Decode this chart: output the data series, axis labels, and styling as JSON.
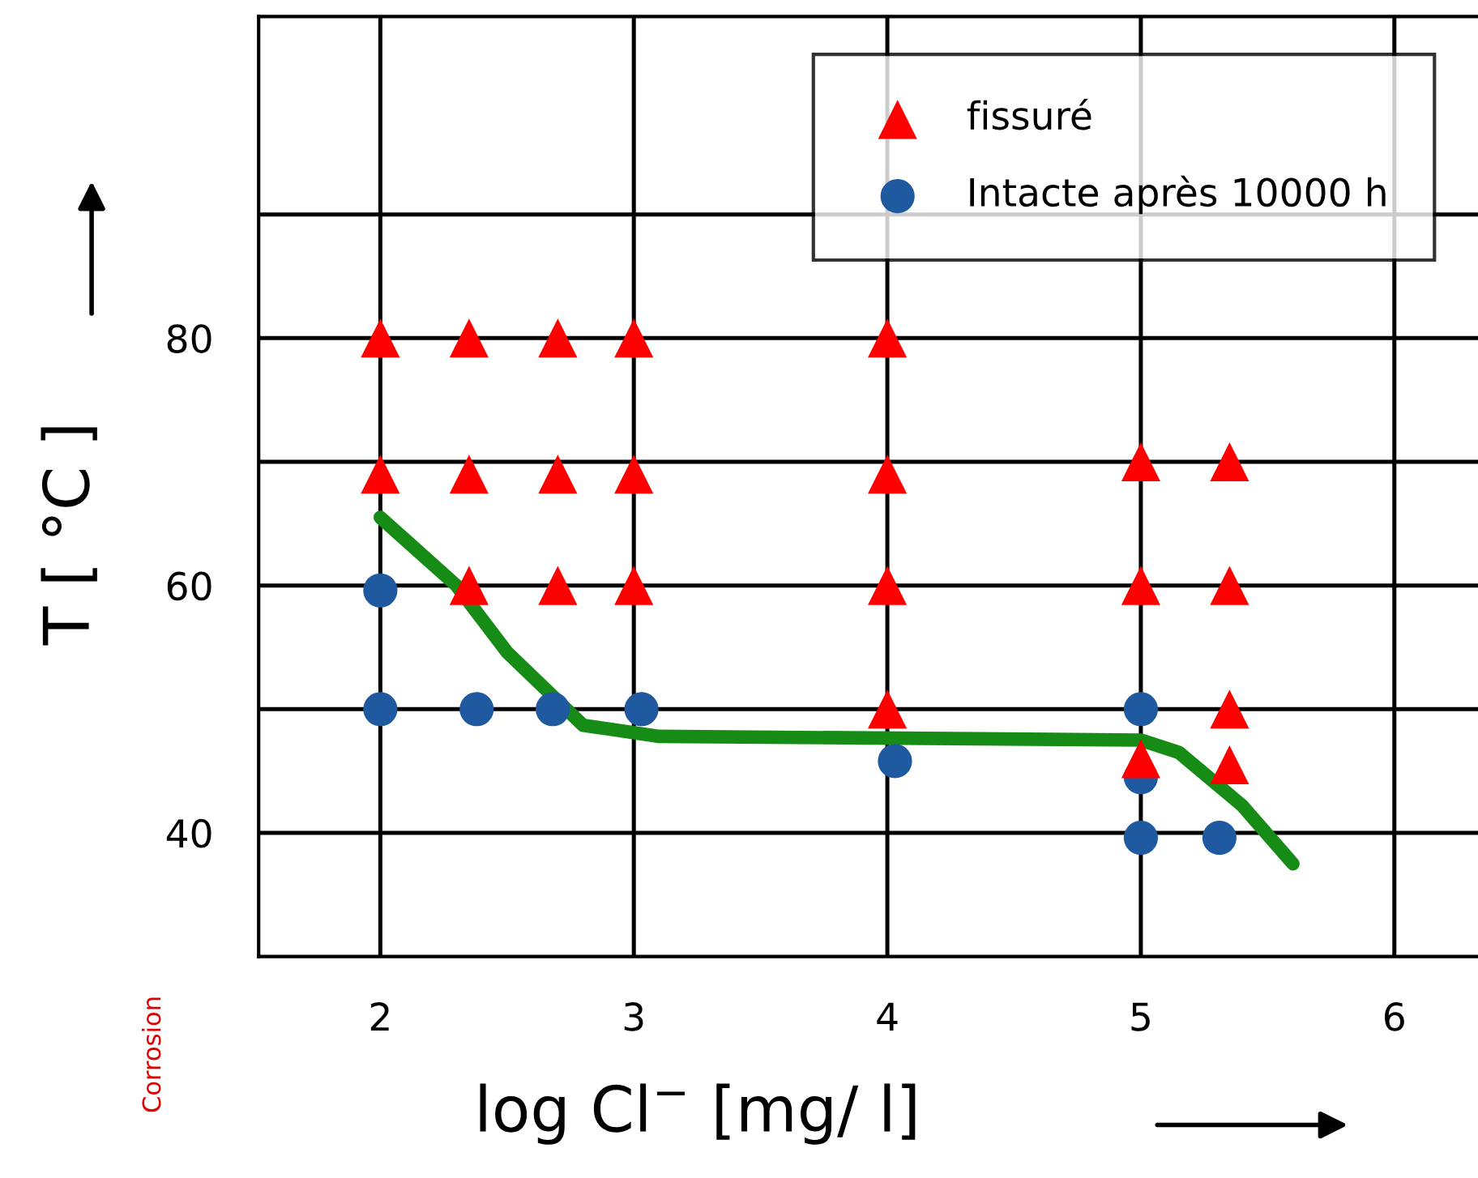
{
  "chart_data": {
    "type": "scatter",
    "xlabel": "log Cl$^{−}$ [mg/ l]",
    "ylabel": "T [ °C ]",
    "xlim": [
      1.52,
      6.33
    ],
    "ylim": [
      30,
      106
    ],
    "xticks": [
      2,
      3,
      4,
      5,
      6
    ],
    "yticks": [
      40,
      {
        "value": 50,
        "label": null
      },
      60,
      {
        "value": 70,
        "label": null
      },
      80,
      {
        "value": 90,
        "label": null
      }
    ],
    "grid": true,
    "legend": "top right",
    "annotations": [
      "Corrosion"
    ],
    "series": [
      {
        "name": "fissuré",
        "color": "#ff0000",
        "marker": "triangle",
        "x": [
          2,
          2.35,
          2.7,
          3,
          2,
          2.35,
          2.7,
          3,
          2.35,
          2.7,
          3,
          4,
          4,
          4,
          4,
          5,
          5,
          5,
          5.35,
          5.35,
          5.35,
          5.35
        ],
        "values": [
          80,
          80,
          80,
          80,
          69,
          69,
          69,
          69,
          60,
          60,
          60,
          80,
          69,
          60,
          50,
          70,
          60,
          46,
          70,
          60,
          50,
          45.5
        ]
      },
      {
        "name": "Intacte après 10000 h",
        "color": "#1f5aa0",
        "marker": "circle",
        "x": [
          2,
          2,
          2.38,
          2.68,
          3.03,
          4.03,
          5,
          5,
          5,
          5.31
        ],
        "values": [
          59.6,
          50,
          50,
          50,
          50,
          45.8,
          50,
          44.5,
          39.6,
          39.6
        ]
      },
      {
        "type": "line",
        "color": "#168c16",
        "marker": "none",
        "x": [
          2.0,
          2.3,
          2.5,
          2.8,
          3.1,
          5.0,
          5.15,
          5.4,
          5.6
        ],
        "values": [
          65.5,
          60,
          54.6,
          48.7,
          47.8,
          47.5,
          46.5,
          42.2,
          37.5
        ]
      }
    ]
  }
}
